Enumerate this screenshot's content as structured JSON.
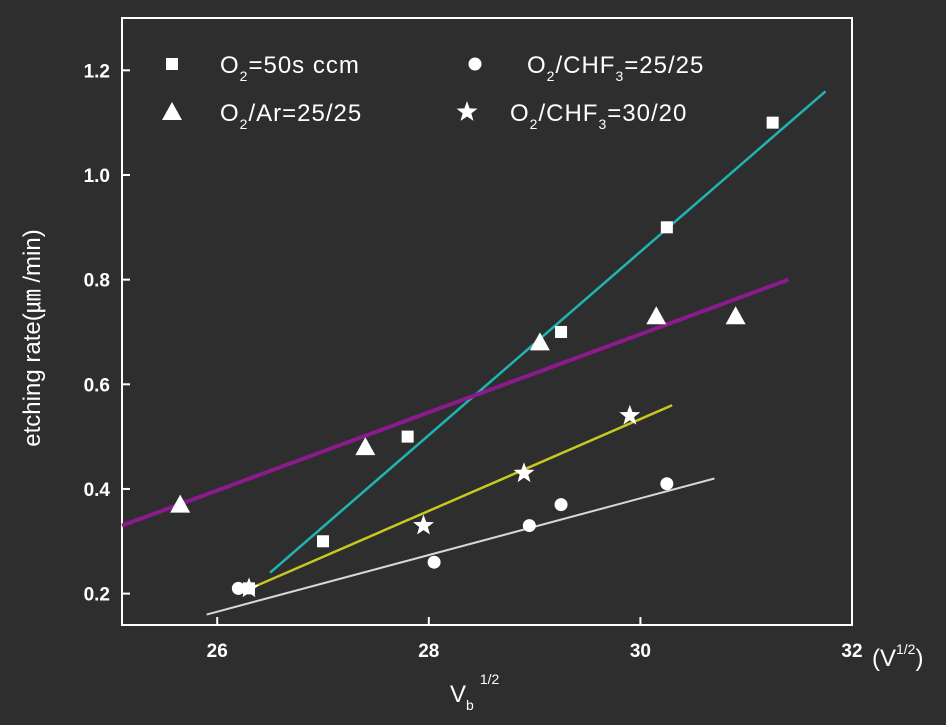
{
  "chart_data": {
    "type": "scatter",
    "xlabel": "V",
    "xlabel_sub": "b",
    "xlabel_sup": "1/2",
    "x_unit": "(V",
    "x_unit_sup": "1/2",
    "x_unit_close": ")",
    "ylabel": "etching rate(㎛ /min)",
    "xlim": [
      25.1,
      32.0
    ],
    "ylim": [
      0.14,
      1.3
    ],
    "xticks": [
      26,
      28,
      30,
      32
    ],
    "xtick_labels": [
      "26",
      "28",
      "30",
      "32"
    ],
    "yticks": [
      0.2,
      0.4,
      0.6,
      0.8,
      1.0,
      1.2
    ],
    "ytick_labels": [
      "0.2",
      "0.4",
      "0.6",
      "0.8",
      "1.0",
      "1.2"
    ],
    "grid": false,
    "legend_position": "top",
    "series": [
      {
        "label_parts": [
          "O",
          "2",
          "=50s ccm"
        ],
        "marker": "square",
        "points": [
          [
            26.3,
            0.21
          ],
          [
            27.0,
            0.3
          ],
          [
            27.8,
            0.5
          ],
          [
            29.25,
            0.7
          ],
          [
            30.25,
            0.9
          ],
          [
            31.25,
            1.1
          ]
        ],
        "fit": {
          "x": [
            26.5,
            31.75
          ],
          "y": [
            0.24,
            1.16
          ],
          "color": "#1fb5b5"
        }
      },
      {
        "label_parts": [
          "O",
          "2",
          "/CHF",
          "3",
          "=25/25"
        ],
        "marker": "circle",
        "points": [
          [
            26.2,
            0.21
          ],
          [
            28.05,
            0.26
          ],
          [
            28.95,
            0.33
          ],
          [
            29.25,
            0.37
          ],
          [
            30.25,
            0.41
          ]
        ],
        "fit": {
          "x": [
            25.9,
            30.7
          ],
          "y": [
            0.16,
            0.42
          ],
          "color": "#d8d8d8"
        }
      },
      {
        "label_parts": [
          "O",
          "2",
          "/Ar=25/25"
        ],
        "marker": "triangle",
        "points": [
          [
            25.65,
            0.37
          ],
          [
            27.4,
            0.48
          ],
          [
            29.05,
            0.68
          ],
          [
            30.15,
            0.73
          ],
          [
            30.9,
            0.73
          ]
        ],
        "fit": {
          "x": [
            25.1,
            31.4
          ],
          "y": [
            0.33,
            0.8
          ],
          "color": "#8c1a8c"
        }
      },
      {
        "label_parts": [
          "O",
          "2",
          "/CHF",
          "3",
          "=30/20"
        ],
        "marker": "star",
        "points": [
          [
            26.3,
            0.21
          ],
          [
            27.95,
            0.33
          ],
          [
            28.9,
            0.43
          ],
          [
            29.9,
            0.54
          ]
        ],
        "fit": {
          "x": [
            26.2,
            30.3
          ],
          "y": [
            0.2,
            0.56
          ],
          "color": "#c8c820"
        }
      }
    ]
  }
}
